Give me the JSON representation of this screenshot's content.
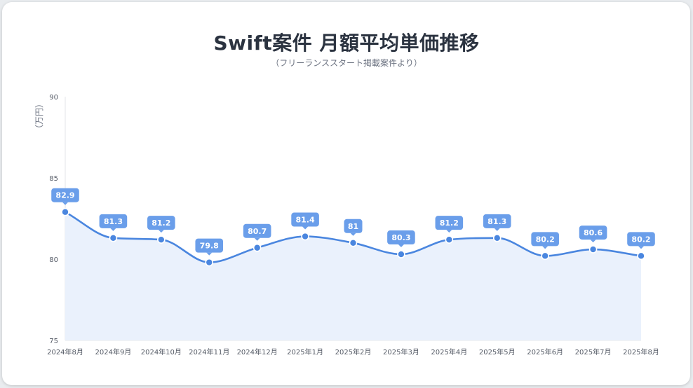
{
  "title": "Swift案件 月額平均単価推移",
  "subtitle": "（フリーランススタート掲載案件より）",
  "chart_data": {
    "type": "line",
    "title": "Swift案件 月額平均単価推移",
    "subtitle": "（フリーランススタート掲載案件より）",
    "ylabel": "（万円）",
    "xlabel": "",
    "categories": [
      "2024年8月",
      "2024年9月",
      "2024年10月",
      "2024年11月",
      "2024年12月",
      "2025年1月",
      "2025年2月",
      "2025年3月",
      "2025年4月",
      "2025年5月",
      "2025年6月",
      "2025年7月",
      "2025年8月"
    ],
    "values": [
      82.9,
      81.3,
      81.2,
      79.8,
      80.7,
      81.4,
      81,
      80.3,
      81.2,
      81.3,
      80.2,
      80.6,
      80.2
    ],
    "data_labels": [
      "82.9",
      "81.3",
      "81.2",
      "79.8",
      "80.7",
      "81.4",
      "81",
      "80.3",
      "81.2",
      "81.3",
      "80.2",
      "80.6",
      "80.2"
    ],
    "ylim": [
      75,
      90
    ],
    "yticks": [
      75,
      80,
      85,
      90
    ],
    "ytick_labels": [
      "75",
      "80",
      "85",
      "90"
    ],
    "grid": false,
    "legend": "none",
    "line_color": "#4a86df",
    "fill_color": "#eaf1fc",
    "label_bg_color": "#6a9eea"
  }
}
